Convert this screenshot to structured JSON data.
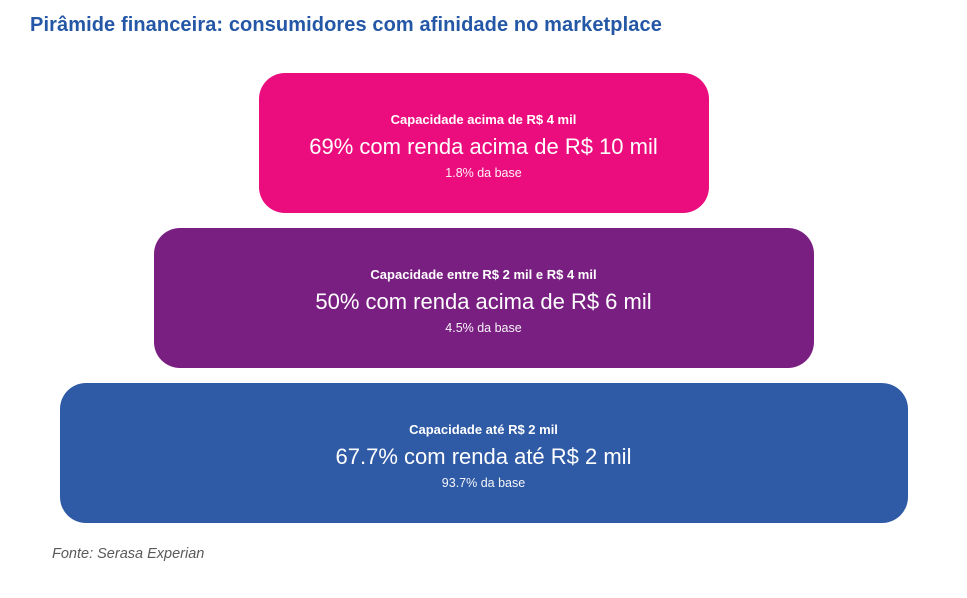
{
  "header": {
    "title": "Pirâmide financeira: consumidores com afinidade no marketplace"
  },
  "footer": {
    "source": "Fonte: Serasa Experian"
  },
  "colors": {
    "title_text": "#2457A5",
    "background": "#FFFFFF",
    "tier_text": "#FFFFFF",
    "source_text": "#595959",
    "tier_top": "#EB0D7E",
    "tier_middle": "#7A1F82",
    "tier_bottom": "#2F5AA5"
  },
  "chart_data": {
    "type": "pyramid",
    "title": "Pirâmide financeira: consumidores com afinidade no marketplace",
    "source": "Fonte: Serasa Experian",
    "legend_position": "none",
    "tiers": [
      {
        "position": "top",
        "capacity_label": "Capacidade acima de R$ 4 mil",
        "headline": "69% com renda acima de R$ 10 mil",
        "base_share_label": "1.8% da base",
        "income_share_pct": 69,
        "base_share_pct": 1.8,
        "color": "#EB0D7E"
      },
      {
        "position": "middle",
        "capacity_label": "Capacidade entre R$ 2 mil e R$ 4 mil",
        "headline": "50% com renda acima de R$ 6 mil",
        "base_share_label": "4.5% da base",
        "income_share_pct": 50,
        "base_share_pct": 4.5,
        "color": "#7A1F82"
      },
      {
        "position": "bottom",
        "capacity_label": "Capacidade até R$ 2 mil",
        "headline": "67.7% com renda até R$ 2 mil",
        "base_share_label": "93.7% da base",
        "income_share_pct": 67.7,
        "base_share_pct": 93.7,
        "color": "#2F5AA5"
      }
    ]
  }
}
